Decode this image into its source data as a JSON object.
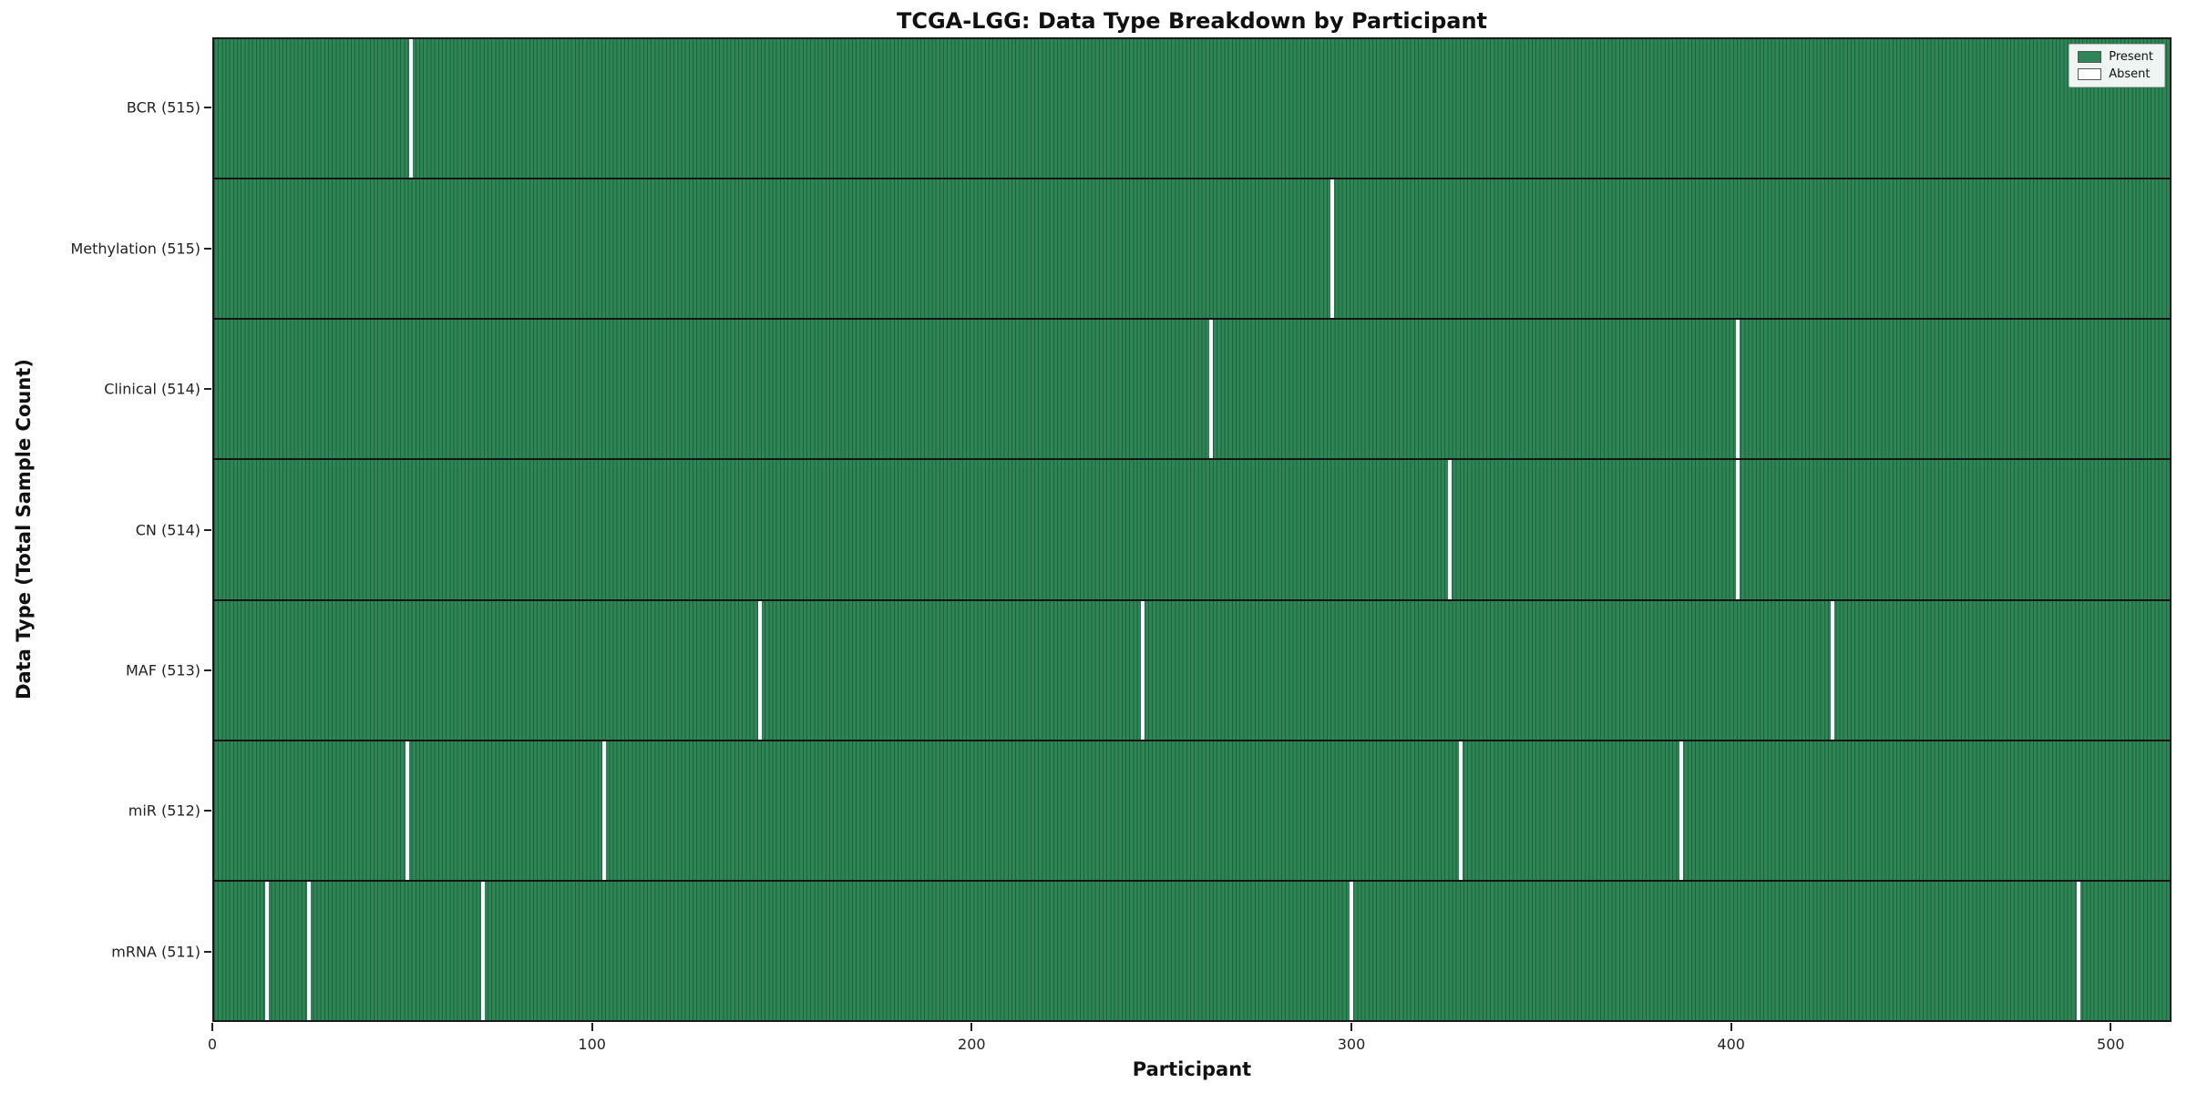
{
  "chart_data": {
    "type": "heatmap",
    "title": "TCGA-LGG: Data Type Breakdown by Participant",
    "xlabel": "Participant",
    "ylabel": "Data Type (Total Sample Count)",
    "x_range": [
      0,
      516
    ],
    "x_ticks": [
      0,
      100,
      200,
      300,
      400,
      500
    ],
    "n_participants": 516,
    "grid": false,
    "legend_position": "upper right",
    "legend": [
      {
        "label": "Present",
        "color": "#2e8656"
      },
      {
        "label": "Absent",
        "color": "#ffffff"
      }
    ],
    "colors": {
      "present": "#2e8656",
      "absent": "#ffffff",
      "cell_edge": "rgba(0,0,0,0.28)"
    },
    "rows": [
      {
        "label": "BCR (515)",
        "present_count": 515,
        "absent_participants": [
          52
        ]
      },
      {
        "label": "Methylation (515)",
        "present_count": 515,
        "absent_participants": [
          295
        ]
      },
      {
        "label": "Clinical (514)",
        "present_count": 514,
        "absent_participants": [
          263,
          402
        ]
      },
      {
        "label": "CN (514)",
        "present_count": 514,
        "absent_participants": [
          326,
          402
        ]
      },
      {
        "label": "MAF (513)",
        "present_count": 513,
        "absent_participants": [
          144,
          245,
          427
        ]
      },
      {
        "label": "miR (512)",
        "present_count": 512,
        "absent_participants": [
          51,
          103,
          329,
          387
        ]
      },
      {
        "label": "mRNA (511)",
        "present_count": 511,
        "absent_participants": [
          14,
          25,
          71,
          300,
          492
        ]
      }
    ]
  }
}
